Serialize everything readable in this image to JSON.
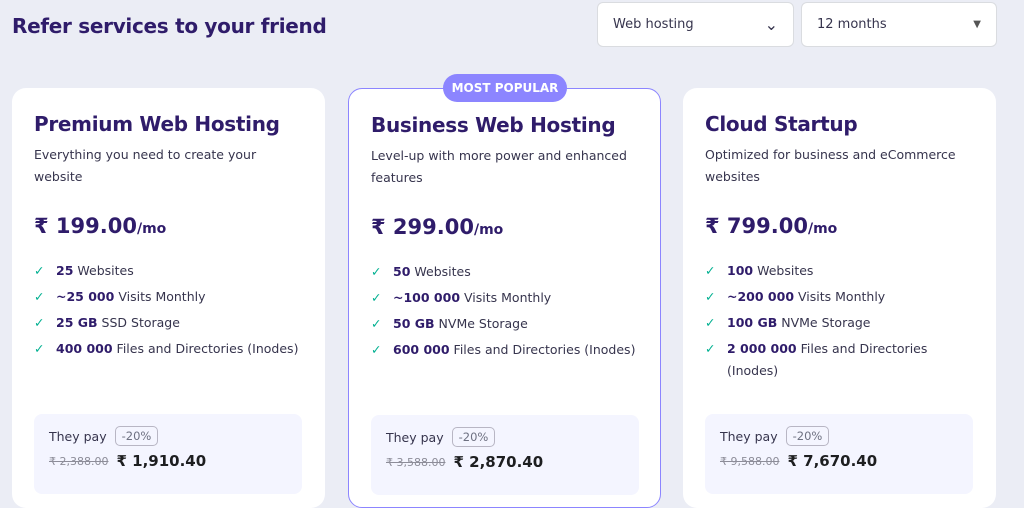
{
  "header": {
    "title": "Refer services to your friend",
    "service_select": "Web hosting",
    "period_select": "12 months"
  },
  "badge": "MOST POPULAR",
  "plans": [
    {
      "name": "Premium Web Hosting",
      "desc": "Everything you need to create your website",
      "price": "₹ 199.00",
      "unit": "/mo",
      "features": [
        {
          "b": "25",
          "t": "Websites"
        },
        {
          "b": "~25 000",
          "t": "Visits Monthly"
        },
        {
          "b": "25 GB",
          "t": "SSD Storage"
        },
        {
          "b": "400 000",
          "t": "Files and Directories (Inodes)"
        }
      ],
      "pay_label": "They pay",
      "discount": "-20%",
      "old_price": "₹ 2,388.00",
      "new_price": "₹ 1,910.40"
    },
    {
      "name": "Business Web Hosting",
      "desc": "Level-up with more power and enhanced features",
      "price": "₹ 299.00",
      "unit": "/mo",
      "features": [
        {
          "b": "50",
          "t": "Websites"
        },
        {
          "b": "~100 000",
          "t": "Visits Monthly"
        },
        {
          "b": "50 GB",
          "t": "NVMe Storage"
        },
        {
          "b": "600 000",
          "t": "Files and Directories (Inodes)"
        }
      ],
      "pay_label": "They pay",
      "discount": "-20%",
      "old_price": "₹ 3,588.00",
      "new_price": "₹ 2,870.40"
    },
    {
      "name": "Cloud Startup",
      "desc": "Optimized for business and eCommerce websites",
      "price": "₹ 799.00",
      "unit": "/mo",
      "features": [
        {
          "b": "100",
          "t": "Websites"
        },
        {
          "b": "~200 000",
          "t": "Visits Monthly"
        },
        {
          "b": "100 GB",
          "t": "NVMe Storage"
        },
        {
          "b": "2 000 000",
          "t": "Files and Directories (Inodes)"
        }
      ],
      "pay_label": "They pay",
      "discount": "-20%",
      "old_price": "₹ 9,588.00",
      "new_price": "₹ 7,670.40"
    }
  ]
}
